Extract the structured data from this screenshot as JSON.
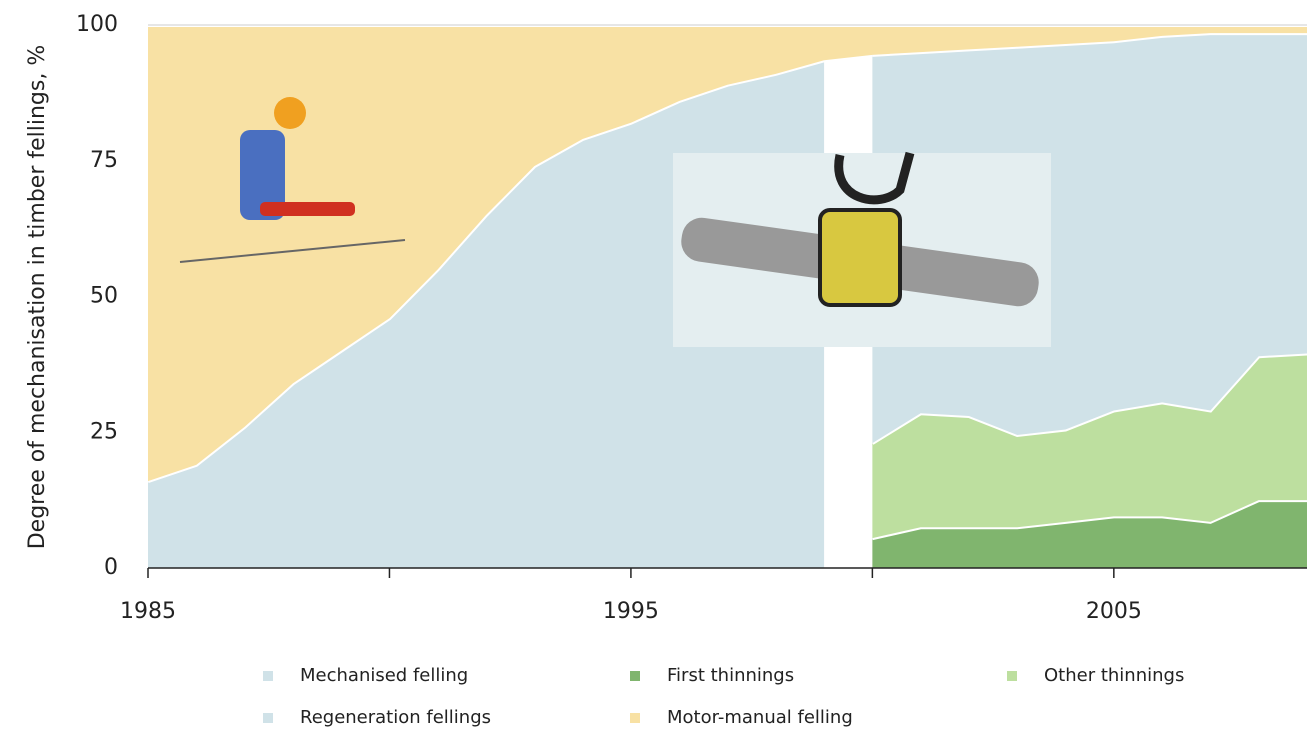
{
  "chart_data": {
    "type": "stacked-area",
    "ylabel": "Degree of mechanisation in timber fellings, %",
    "x": [
      1985,
      1986,
      1987,
      1988,
      1989,
      1990,
      1991,
      1992,
      1993,
      1994,
      1995,
      1996,
      1997,
      1998,
      1999,
      2000,
      2001,
      2002,
      2003,
      2004,
      2005,
      2006,
      2007,
      2008,
      2009
    ],
    "xlim": [
      1985,
      2009
    ],
    "xticks": [
      1985,
      1995,
      2005
    ],
    "minor_xticks": [
      1990,
      2000
    ],
    "ylim": [
      0,
      100
    ],
    "yticks": [
      0,
      25,
      50,
      75,
      100
    ],
    "series": [
      {
        "name": "Mechanised felling",
        "color": "#d0e2e8",
        "values": [
          16,
          19,
          26,
          34,
          40,
          46,
          55,
          65,
          74,
          79,
          82,
          86,
          89,
          91,
          93.5,
          null,
          null,
          null,
          null,
          null,
          null,
          null,
          null,
          null,
          null
        ]
      },
      {
        "name": "First thinnings",
        "color": "#80b56e",
        "values": [
          null,
          null,
          null,
          null,
          null,
          null,
          null,
          null,
          null,
          null,
          null,
          null,
          null,
          null,
          null,
          5.5,
          7.5,
          7.5,
          7.5,
          8.5,
          9.5,
          9.5,
          8.5,
          12.5,
          12.5
        ]
      },
      {
        "name": "Other thinnings",
        "color": "#bddf9f",
        "values": [
          null,
          null,
          null,
          null,
          null,
          null,
          null,
          null,
          null,
          null,
          null,
          null,
          null,
          null,
          null,
          17.5,
          21,
          20.5,
          17,
          17,
          19.5,
          21,
          20.5,
          26.5,
          27
        ]
      },
      {
        "name": "Regeneration fellings",
        "color": "#d0e2e8",
        "values": [
          null,
          null,
          null,
          null,
          null,
          null,
          null,
          null,
          null,
          null,
          null,
          null,
          null,
          null,
          null,
          71.5,
          66.5,
          67.5,
          71.5,
          71,
          68,
          67.5,
          69.5,
          59.5,
          59
        ]
      },
      {
        "name": "Motor-manual felling",
        "color": "#f8e1a4",
        "values": [
          84,
          81,
          74,
          66,
          60,
          54,
          45,
          35,
          26,
          21,
          18,
          14,
          11,
          9,
          6.5,
          5.5,
          5,
          4.5,
          4,
          3.5,
          3,
          2,
          1.5,
          1.5,
          1.5
        ]
      }
    ]
  }
}
